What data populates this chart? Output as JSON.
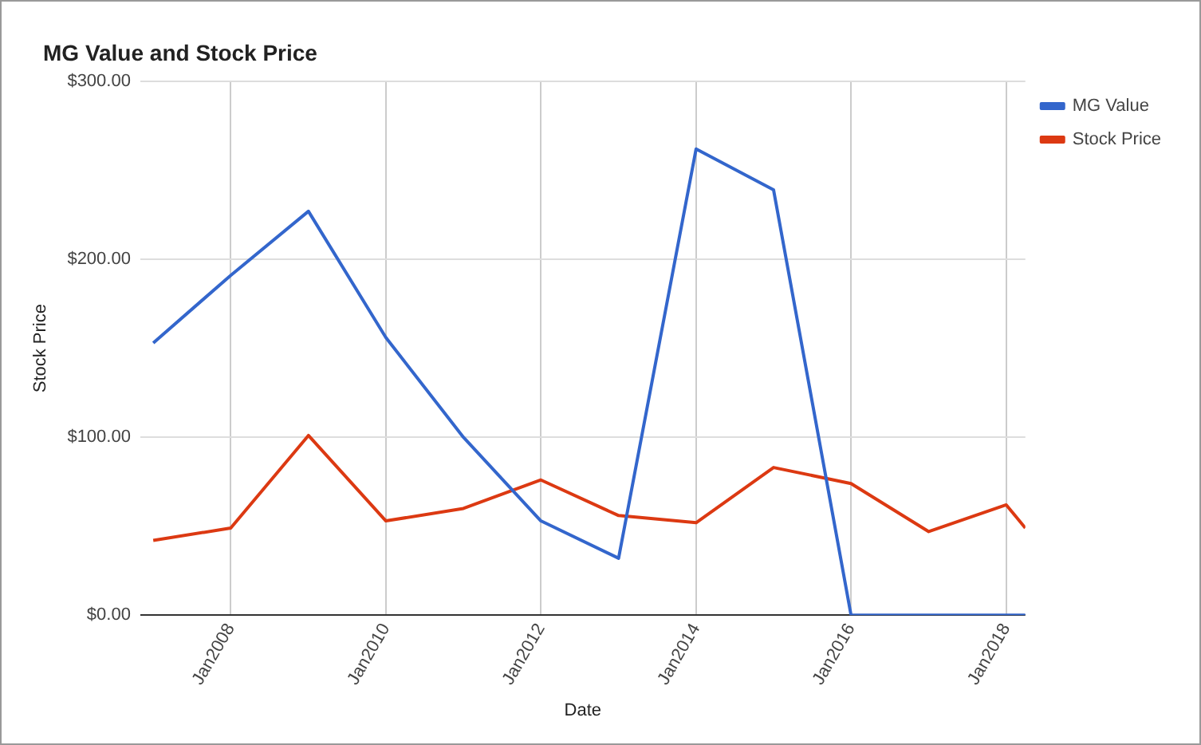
{
  "chart_data": {
    "type": "line",
    "title": "MG Value and Stock Price",
    "xlabel": "Date",
    "ylabel": "Stock Price",
    "x": [
      "2007-01",
      "2008-01",
      "2009-01",
      "2010-01",
      "2011-01",
      "2012-01",
      "2013-01",
      "2014-01",
      "2015-01",
      "2016-01",
      "2017-01",
      "2018-01",
      "2018-04"
    ],
    "series": [
      {
        "name": "MG Value",
        "color": "#3366cc",
        "values": [
          153,
          191,
          227,
          156,
          100,
          53,
          32,
          262,
          239,
          0,
          0,
          0,
          0
        ]
      },
      {
        "name": "Stock Price",
        "color": "#dc3912",
        "values": [
          42,
          49,
          101,
          53,
          60,
          76,
          56,
          52,
          83,
          74,
          47,
          62,
          49
        ]
      }
    ],
    "xlim": [
      "2006-11",
      "2018-04"
    ],
    "xticks": [
      {
        "value": "2008-01",
        "label": "Jan2008"
      },
      {
        "value": "2010-01",
        "label": "Jan2010"
      },
      {
        "value": "2012-01",
        "label": "Jan2012"
      },
      {
        "value": "2014-01",
        "label": "Jan2014"
      },
      {
        "value": "2016-01",
        "label": "Jan2016"
      },
      {
        "value": "2018-01",
        "label": "Jan2018"
      }
    ],
    "ylim": [
      0,
      300
    ],
    "yticks": [
      {
        "value": 0,
        "label": "$0.00"
      },
      {
        "value": 100,
        "label": "$100.00"
      },
      {
        "value": 200,
        "label": "$200.00"
      },
      {
        "value": 300,
        "label": "$300.00"
      }
    ],
    "grid": true,
    "legend": "right",
    "marker": "none",
    "line_style": "solid"
  }
}
